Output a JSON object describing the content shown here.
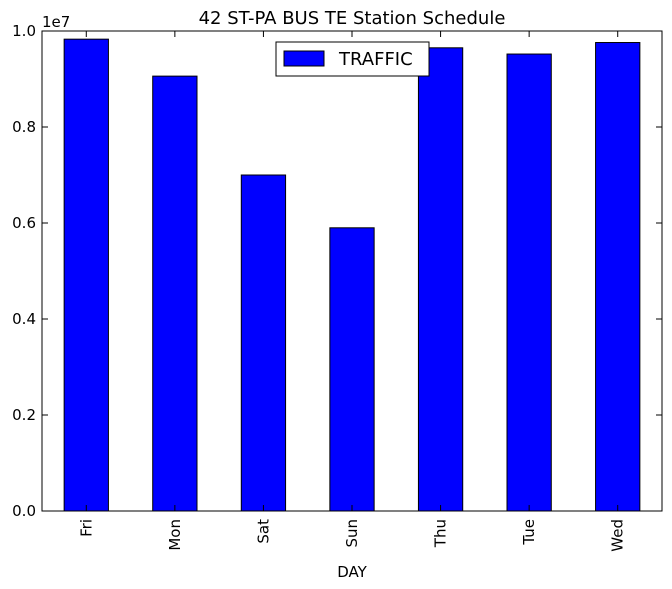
{
  "chart_data": {
    "type": "bar",
    "title": "42 ST-PA BUS TE Station Schedule",
    "xlabel": "DAY",
    "ylabel": "",
    "y_scale_label": "1e7",
    "categories": [
      "Fri",
      "Mon",
      "Sat",
      "Sun",
      "Thu",
      "Tue",
      "Wed"
    ],
    "series": [
      {
        "name": "TRAFFIC",
        "values": [
          9830000,
          9060000,
          7000000,
          5900000,
          9650000,
          9520000,
          9760000
        ]
      }
    ],
    "ylim": [
      0,
      10000000
    ],
    "yticks": [
      0,
      2000000,
      4000000,
      6000000,
      8000000,
      10000000
    ],
    "ytick_labels": [
      "0.0",
      "0.2",
      "0.4",
      "0.6",
      "0.8",
      "1.0"
    ],
    "grid": false,
    "legend_position": "top-center",
    "bar_color": "#0000ff",
    "edge_color": "#000000"
  }
}
